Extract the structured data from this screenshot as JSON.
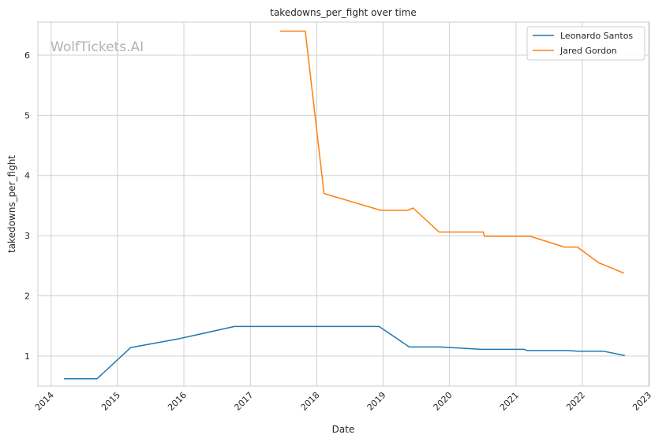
{
  "chart_data": {
    "type": "line",
    "title": "takedowns_per_fight over time",
    "xlabel": "Date",
    "ylabel": "takedowns_per_fight",
    "watermark": "WolfTickets.AI",
    "xlim": [
      "2013-10-20",
      "2023-01-05"
    ],
    "ylim": [
      0.5,
      6.55
    ],
    "x_ticks": [
      "2014-01-01",
      "2015-01-01",
      "2016-01-01",
      "2017-01-01",
      "2018-01-01",
      "2019-01-01",
      "2020-01-01",
      "2021-01-01",
      "2022-01-01",
      "2023-01-01"
    ],
    "x_tick_labels": [
      "2014",
      "2015",
      "2016",
      "2017",
      "2018",
      "2019",
      "2020",
      "2021",
      "2022",
      "2023"
    ],
    "y_ticks": [
      1,
      2,
      3,
      4,
      5,
      6
    ],
    "grid": true,
    "legend_position": "top-right",
    "series": [
      {
        "name": "Leonardo Santos",
        "color": "#1f77b4",
        "points": [
          [
            "2014-03-15",
            0.62
          ],
          [
            "2014-09-10",
            0.62
          ],
          [
            "2015-03-15",
            1.14
          ],
          [
            "2015-12-10",
            1.29
          ],
          [
            "2016-10-05",
            1.49
          ],
          [
            "2018-12-10",
            1.49
          ],
          [
            "2019-05-25",
            1.15
          ],
          [
            "2019-11-10",
            1.15
          ],
          [
            "2020-06-25",
            1.11
          ],
          [
            "2021-02-15",
            1.11
          ],
          [
            "2021-03-05",
            1.09
          ],
          [
            "2021-10-10",
            1.09
          ],
          [
            "2021-12-05",
            1.08
          ],
          [
            "2022-04-25",
            1.08
          ],
          [
            "2022-08-20",
            1.01
          ]
        ]
      },
      {
        "name": "Jared Gordon",
        "color": "#ff7f0e",
        "points": [
          [
            "2017-06-15",
            6.4
          ],
          [
            "2017-10-30",
            6.4
          ],
          [
            "2018-02-10",
            3.7
          ],
          [
            "2018-12-20",
            3.42
          ],
          [
            "2019-05-15",
            3.42
          ],
          [
            "2019-06-15",
            3.46
          ],
          [
            "2019-11-05",
            3.06
          ],
          [
            "2020-07-05",
            3.06
          ],
          [
            "2020-07-12",
            2.99
          ],
          [
            "2021-03-20",
            2.99
          ],
          [
            "2021-09-25",
            2.81
          ],
          [
            "2021-12-05",
            2.81
          ],
          [
            "2022-04-01",
            2.55
          ],
          [
            "2022-08-15",
            2.38
          ]
        ]
      }
    ]
  }
}
